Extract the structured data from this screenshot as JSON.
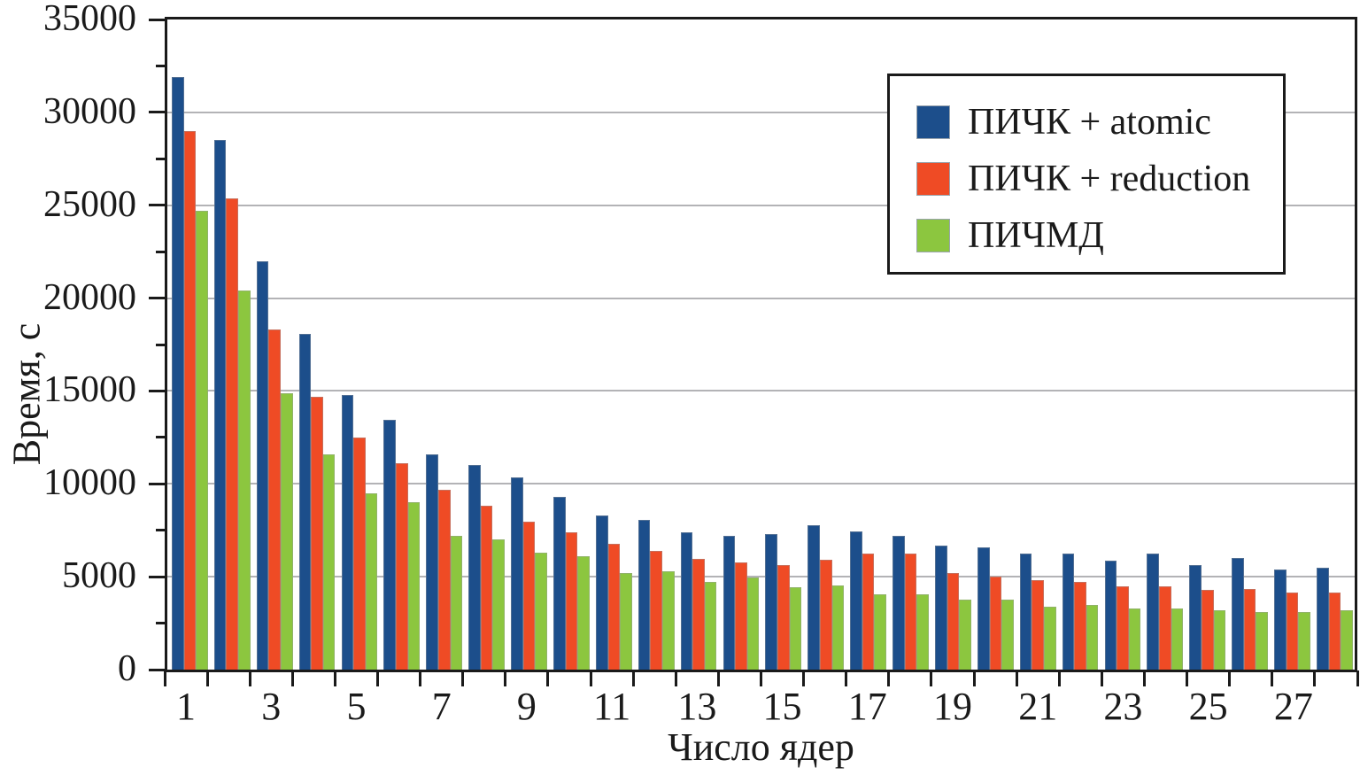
{
  "chart_data": {
    "type": "bar",
    "title": "",
    "xlabel": "Число ядер",
    "ylabel": "Время, с",
    "x": [
      1,
      2,
      3,
      4,
      5,
      6,
      7,
      8,
      9,
      10,
      11,
      12,
      13,
      14,
      15,
      16,
      17,
      18,
      19,
      20,
      21,
      22,
      23,
      24,
      25,
      26,
      27,
      28
    ],
    "x_tick_labels": [
      "1",
      "3",
      "5",
      "7",
      "9",
      "11",
      "13",
      "15",
      "17",
      "19",
      "21",
      "23",
      "25",
      "27"
    ],
    "y_ticks": [
      0,
      5000,
      10000,
      15000,
      20000,
      25000,
      30000,
      35000
    ],
    "y_minor_step": 2500,
    "ylim": [
      0,
      35000
    ],
    "grid": "horizontal-major",
    "legend_position": "top-right-inside",
    "axis_color": "#1a1a1a",
    "gridline_color": "#b3b3b6",
    "series": [
      {
        "name": "ПИЧК + atomic",
        "color": "#1c4e8b",
        "values": [
          31900,
          28500,
          22000,
          18050,
          14800,
          13450,
          11600,
          11000,
          10350,
          9300,
          8300,
          8050,
          7400,
          7200,
          7300,
          7750,
          7450,
          7200,
          6700,
          6600,
          6250,
          6250,
          5850,
          6250,
          5650,
          6000,
          5400,
          5500
        ]
      },
      {
        "name": "ПИЧК + reduction",
        "color": "#ef4b25",
        "values": [
          29000,
          25350,
          18300,
          14700,
          12500,
          11100,
          9700,
          8800,
          7950,
          7400,
          6750,
          6400,
          5950,
          5750,
          5650,
          5900,
          6250,
          6250,
          5200,
          5000,
          4800,
          4700,
          4500,
          4500,
          4300,
          4350,
          4150,
          4150
        ]
      },
      {
        "name": "ПИЧМД",
        "color": "#8cc63f",
        "values": [
          24700,
          20400,
          14900,
          11600,
          9500,
          9000,
          7200,
          7000,
          6300,
          6100,
          5200,
          5300,
          4700,
          4950,
          4450,
          4550,
          4050,
          4050,
          3750,
          3750,
          3400,
          3500,
          3300,
          3300,
          3200,
          3100,
          3100,
          3200
        ]
      }
    ]
  }
}
